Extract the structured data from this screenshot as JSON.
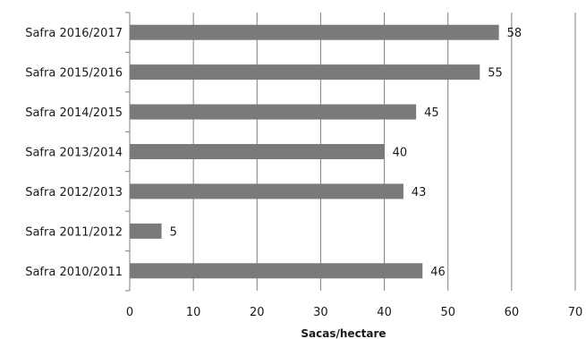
{
  "chart_data": {
    "type": "bar",
    "orientation": "horizontal",
    "categories": [
      "Safra 2016/2017",
      "Safra 2015/2016",
      "Safra 2014/2015",
      "Safra 2013/2014",
      "Safra 2012/2013",
      "Safra 2011/2012",
      "Safra 2010/2011"
    ],
    "values": [
      58,
      55,
      45,
      40,
      43,
      5,
      46
    ],
    "xlabel": "Sacas/hectare",
    "xlim": [
      0,
      70
    ],
    "xticks": [
      "0",
      "10",
      "20",
      "30",
      "40",
      "50",
      "60",
      "70"
    ],
    "grid": true,
    "legend": "none",
    "bar_color": "#7a7a7a",
    "data_labels": true
  }
}
